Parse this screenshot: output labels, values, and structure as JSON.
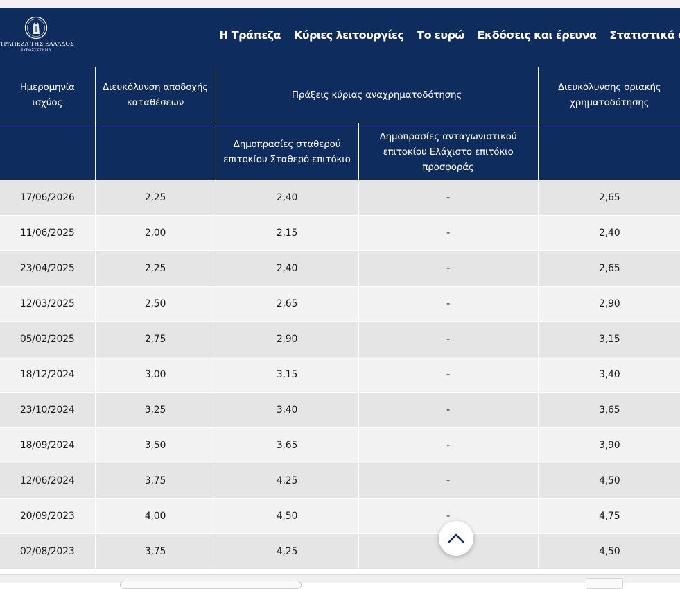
{
  "header": {
    "logo_name": "ΤΡΑΠΕΖΑ ΤΗΣ ΕΛΛΑΔΟΣ",
    "logo_sub": "ΕΥΡΩΣΥΣΤΗΜΑ",
    "nav": [
      {
        "label": "Η Τράπεζα"
      },
      {
        "label": "Κύριες λειτουργίες"
      },
      {
        "label": "Το ευρώ"
      },
      {
        "label": "Εκδόσεις και έρευνα"
      },
      {
        "label": "Στατιστικά στοιχεία"
      }
    ]
  },
  "table": {
    "headers": {
      "date": "Ημερομηνία ισχύος",
      "deposit": "Διευκόλυνση αποδοχής καταθέσεων",
      "mro": "Πράξεις κύριας αναχρηματοδότησης",
      "marginal": "Διευκόλυνσης οριακής χρηματοδότησης",
      "fixed": "Δημοπρασίες σταθερού επιτοκίου Σταθερό επιτόκιο",
      "variable": "Δημοπρασίες ανταγωνιστικού επιτοκίου Ελάχιστο επιτόκιο προσφοράς"
    },
    "rows": [
      {
        "date": "17/06/2026",
        "deposit": "2,25",
        "fixed": "2,40",
        "variable": "-",
        "marginal": "2,65"
      },
      {
        "date": "11/06/2025",
        "deposit": "2,00",
        "fixed": "2,15",
        "variable": "-",
        "marginal": "2,40"
      },
      {
        "date": "23/04/2025",
        "deposit": "2,25",
        "fixed": "2,40",
        "variable": "-",
        "marginal": "2,65"
      },
      {
        "date": "12/03/2025",
        "deposit": "2,50",
        "fixed": "2,65",
        "variable": "-",
        "marginal": "2,90"
      },
      {
        "date": "05/02/2025",
        "deposit": "2,75",
        "fixed": "2,90",
        "variable": "-",
        "marginal": "3,15"
      },
      {
        "date": "18/12/2024",
        "deposit": "3,00",
        "fixed": "3,15",
        "variable": "-",
        "marginal": "3,40"
      },
      {
        "date": "23/10/2024",
        "deposit": "3,25",
        "fixed": "3,40",
        "variable": "-",
        "marginal": "3,65"
      },
      {
        "date": "18/09/2024",
        "deposit": "3,50",
        "fixed": "3,65",
        "variable": "-",
        "marginal": "3,90"
      },
      {
        "date": "12/06/2024",
        "deposit": "3,75",
        "fixed": "4,25",
        "variable": "-",
        "marginal": "4,50"
      },
      {
        "date": "20/09/2023",
        "deposit": "4,00",
        "fixed": "4,50",
        "variable": "-",
        "marginal": "4,75"
      },
      {
        "date": "02/08/2023",
        "deposit": "3,75",
        "fixed": "4,25",
        "variable": "-",
        "marginal": "4,50"
      }
    ]
  },
  "icons": {
    "logo": "bank-emblem-icon",
    "scroll_top": "chevron-up-icon"
  },
  "colors": {
    "header_bg": "#0f2c5e",
    "row_odd": "#e5e5e5",
    "row_even": "#f2f2f2"
  }
}
